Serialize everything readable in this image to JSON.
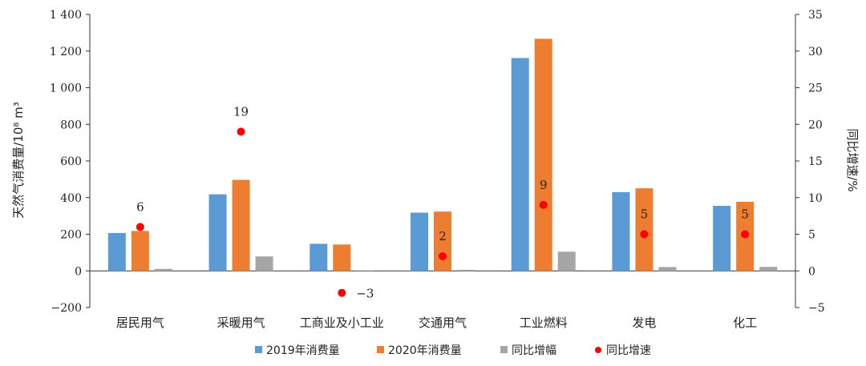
{
  "chart_data": {
    "type": "bar",
    "categories": [
      "居民用气",
      "采暖用气",
      "工商业及小工业",
      "交通用气",
      "工业燃料",
      "发电",
      "化工"
    ],
    "series": [
      {
        "name": "2019年消费量",
        "axis": "left",
        "color": "#5b9bd5",
        "values": [
          207,
          418,
          148,
          318,
          1162,
          430,
          355
        ]
      },
      {
        "name": "2020年消费量",
        "axis": "left",
        "color": "#ed7d31",
        "values": [
          218,
          497,
          144,
          324,
          1267,
          451,
          377
        ]
      },
      {
        "name": "同比增幅",
        "axis": "left",
        "color": "#a5a5a5",
        "values": [
          11,
          79,
          -4,
          6,
          105,
          21,
          22
        ]
      },
      {
        "name": "同比增速",
        "axis": "right",
        "type": "scatter",
        "color": "#ff0000",
        "values": [
          6,
          19,
          -3,
          2,
          9,
          5,
          5
        ]
      }
    ],
    "point_labels": [
      "6",
      "19",
      "−3",
      "2",
      "9",
      "5",
      "5"
    ],
    "ylabel": "天然气消费量/10⁸ m³",
    "ylabel_right": "同比增速/%",
    "ylim": [
      -200,
      1400
    ],
    "ylim_right": [
      -5,
      35
    ],
    "yticks": [
      "1 400",
      "1 200",
      "1 000",
      "800",
      "600",
      "400",
      "200",
      "0",
      "−200"
    ],
    "yticks_right": [
      "35",
      "30",
      "25",
      "20",
      "15",
      "10",
      "5",
      "0",
      "−5"
    ],
    "legend_position": "bottom",
    "grid": false
  }
}
